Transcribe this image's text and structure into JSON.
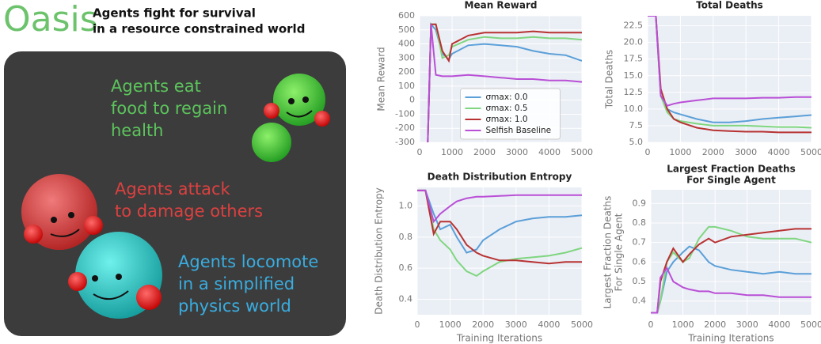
{
  "header": {
    "title": "Oasis",
    "subtitle": [
      "Agents fight for survival",
      "in a resource constrained world"
    ]
  },
  "panel": {
    "eat": [
      "Agents eat",
      "food to regain",
      "health"
    ],
    "attack": [
      "Agents attack",
      "to damage others"
    ],
    "locomote": [
      "Agents locomote",
      "in a simplified",
      "physics world"
    ]
  },
  "chart_data": [
    {
      "type": "line",
      "title": "Mean Reward",
      "y_label": "Mean Reward",
      "grid": true,
      "legend": "lower center",
      "xlim": [
        0,
        5000
      ],
      "xticks": [
        0,
        1000,
        2000,
        3000,
        4000,
        5000
      ],
      "ylim": [
        -300,
        600
      ],
      "yticks": [
        -300,
        -200,
        -100,
        0,
        100,
        200,
        300,
        400,
        500,
        600
      ],
      "x": [
        250,
        350,
        500,
        700,
        900,
        1000,
        1500,
        2000,
        2500,
        3000,
        3500,
        4000,
        4500,
        5000
      ],
      "series": [
        {
          "name": "σmax: 0.0",
          "color": "#5a9fd8",
          "values": [
            -300,
            540,
            500,
            330,
            290,
            330,
            390,
            400,
            390,
            380,
            350,
            330,
            320,
            280
          ]
        },
        {
          "name": "σmax: 0.5",
          "color": "#7fd67f",
          "values": [
            -300,
            540,
            540,
            300,
            320,
            380,
            430,
            450,
            440,
            440,
            450,
            440,
            440,
            430
          ]
        },
        {
          "name": "σmax: 1.0",
          "color": "#b83232",
          "values": [
            -300,
            540,
            540,
            350,
            280,
            400,
            460,
            480,
            480,
            480,
            490,
            480,
            480,
            480
          ]
        },
        {
          "name": "Selfish Baseline",
          "color": "#b94fd6",
          "values": [
            -300,
            540,
            180,
            170,
            170,
            170,
            180,
            170,
            160,
            150,
            150,
            140,
            140,
            130
          ]
        }
      ]
    },
    {
      "type": "line",
      "title": "Total Deaths",
      "y_label": "Total Deaths",
      "grid": true,
      "xlim": [
        0,
        5000
      ],
      "xticks": [
        0,
        1000,
        2000,
        3000,
        4000,
        5000
      ],
      "ylim": [
        5,
        24
      ],
      "yticks": [
        {
          "value": 5,
          "label": "5.0"
        },
        7.5,
        {
          "value": 10,
          "label": "10.0"
        },
        12.5,
        {
          "value": 15,
          "label": "15.0"
        },
        17.5,
        {
          "value": 20,
          "label": "20.0"
        },
        22.5
      ],
      "x": [
        0,
        250,
        400,
        600,
        800,
        1000,
        1500,
        2000,
        2500,
        3000,
        3500,
        4000,
        4500,
        5000
      ],
      "series": [
        {
          "color": "#5a9fd8",
          "values": [
            24,
            24,
            12,
            10,
            9.5,
            9.2,
            8.5,
            8,
            8,
            8.2,
            8.5,
            8.7,
            8.9,
            9.1
          ]
        },
        {
          "color": "#7fd67f",
          "values": [
            24,
            24,
            12,
            9.5,
            8.5,
            8.2,
            7.8,
            7.5,
            7.5,
            7.5,
            7.4,
            7.3,
            7.3,
            7.2
          ]
        },
        {
          "color": "#b83232",
          "values": [
            24,
            24,
            13,
            10,
            8.5,
            8,
            7.2,
            6.8,
            6.7,
            6.6,
            6.6,
            6.5,
            6.5,
            6.5
          ]
        },
        {
          "color": "#b94fd6",
          "values": [
            24,
            24,
            12,
            10.5,
            10.8,
            11,
            11.3,
            11.6,
            11.6,
            11.6,
            11.7,
            11.7,
            11.8,
            11.8
          ]
        }
      ]
    },
    {
      "type": "line",
      "title": "Death Distribution Entropy",
      "y_label": "Death Distribution Entropy",
      "x_label": "Training Iterations",
      "grid": true,
      "xlim": [
        0,
        5000
      ],
      "xticks": [
        0,
        1000,
        2000,
        3000,
        4000,
        5000
      ],
      "ylim": [
        0.3,
        1.12
      ],
      "yticks": [
        0.4,
        0.6,
        0.8,
        {
          "value": 1,
          "label": "1.0"
        }
      ],
      "x": [
        0,
        250,
        500,
        700,
        1000,
        1200,
        1500,
        1800,
        2000,
        2500,
        3000,
        3500,
        4000,
        4500,
        5000
      ],
      "series": [
        {
          "color": "#5a9fd8",
          "values": [
            1.1,
            1.1,
            0.95,
            0.85,
            0.88,
            0.8,
            0.7,
            0.72,
            0.78,
            0.85,
            0.9,
            0.92,
            0.93,
            0.93,
            0.94
          ]
        },
        {
          "color": "#7fd67f",
          "values": [
            1.1,
            1.1,
            0.85,
            0.78,
            0.72,
            0.65,
            0.58,
            0.55,
            0.58,
            0.64,
            0.66,
            0.67,
            0.68,
            0.7,
            0.73
          ]
        },
        {
          "color": "#b83232",
          "values": [
            1.1,
            1.1,
            0.82,
            0.9,
            0.9,
            0.85,
            0.75,
            0.7,
            0.68,
            0.65,
            0.65,
            0.64,
            0.63,
            0.64,
            0.64
          ]
        },
        {
          "color": "#b94fd6",
          "values": [
            1.1,
            1.1,
            0.9,
            0.95,
            1.0,
            1.03,
            1.05,
            1.06,
            1.06,
            1.065,
            1.07,
            1.07,
            1.07,
            1.07,
            1.07
          ]
        }
      ]
    },
    {
      "type": "line",
      "title": [
        "Largest Fraction Deaths",
        "For Single Agent"
      ],
      "y_label": [
        "Largest Fraction Deaths",
        "For Single Agent"
      ],
      "x_label": "Training Iterations",
      "grid": true,
      "xlim": [
        0,
        5000
      ],
      "xticks": [
        0,
        1000,
        2000,
        3000,
        4000,
        5000
      ],
      "ylim": [
        0.33,
        0.97
      ],
      "yticks": [
        0.4,
        0.5,
        0.6,
        0.7,
        0.8,
        0.9
      ],
      "x": [
        0,
        200,
        300,
        500,
        700,
        1000,
        1200,
        1500,
        1800,
        2000,
        2500,
        3000,
        3500,
        4000,
        4500,
        5000
      ],
      "series": [
        {
          "color": "#5a9fd8",
          "values": [
            0.34,
            0.34,
            0.4,
            0.55,
            0.6,
            0.65,
            0.68,
            0.66,
            0.6,
            0.58,
            0.56,
            0.55,
            0.54,
            0.55,
            0.54,
            0.54
          ]
        },
        {
          "color": "#7fd67f",
          "values": [
            0.34,
            0.34,
            0.4,
            0.6,
            0.65,
            0.6,
            0.62,
            0.72,
            0.78,
            0.78,
            0.76,
            0.73,
            0.72,
            0.72,
            0.72,
            0.7
          ]
        },
        {
          "color": "#b83232",
          "values": [
            0.34,
            0.34,
            0.5,
            0.6,
            0.67,
            0.6,
            0.64,
            0.69,
            0.72,
            0.7,
            0.73,
            0.74,
            0.75,
            0.76,
            0.77,
            0.77
          ]
        },
        {
          "color": "#b94fd6",
          "values": [
            0.34,
            0.34,
            0.52,
            0.57,
            0.5,
            0.47,
            0.46,
            0.45,
            0.45,
            0.44,
            0.44,
            0.43,
            0.43,
            0.42,
            0.42,
            0.42
          ]
        }
      ]
    }
  ]
}
